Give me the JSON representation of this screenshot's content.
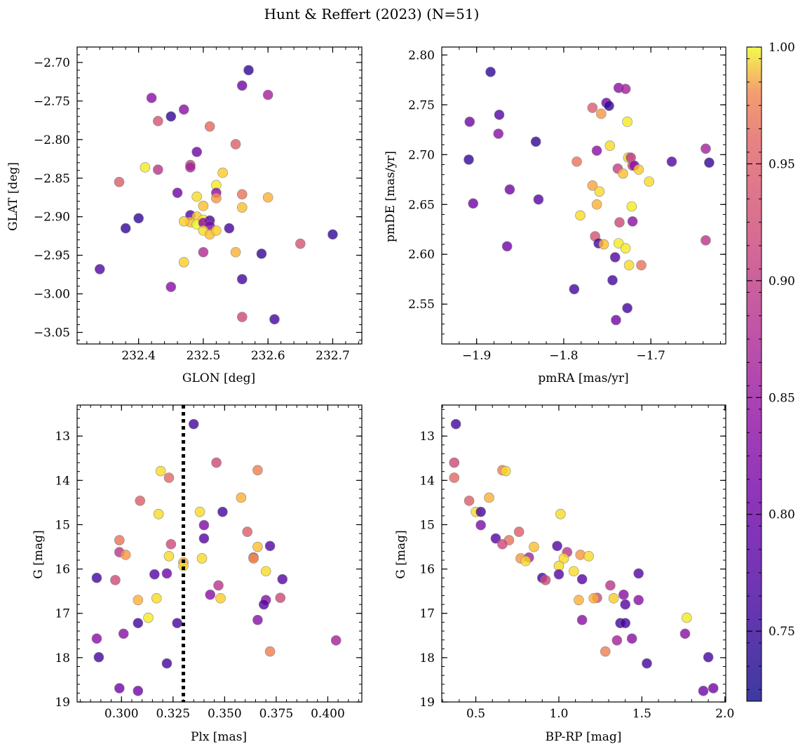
{
  "figure": {
    "title": "Hunt & Reffert (2023) (N=51)"
  },
  "colormap": {
    "name": "plasma",
    "range": [
      0.72,
      1.0
    ],
    "ticks": [
      0.75,
      0.8,
      0.85,
      0.9,
      0.95,
      1.0
    ],
    "tick_labels": [
      "0.75",
      "0.80",
      "0.85",
      "0.90",
      "0.95",
      "1.00"
    ]
  },
  "colors": {
    "frame": "#000000",
    "marker_edge": "#888888",
    "threshold_line": "#000000"
  },
  "chart_data": [
    {
      "id": "spatial",
      "type": "scatter",
      "xlabel": "GLON [deg]",
      "ylabel": "GLAT [deg]",
      "xlim": [
        232.305,
        232.745
      ],
      "ylim": [
        -3.065,
        -2.68
      ],
      "y_inverted": false,
      "xticks": [
        232.4,
        232.5,
        232.6,
        232.7
      ],
      "xtick_labels": [
        "232.4",
        "232.5",
        "232.6",
        "232.7"
      ],
      "yticks": [
        -3.05,
        -3.0,
        -2.95,
        -2.9,
        -2.85,
        -2.8,
        -2.75,
        -2.7
      ],
      "ytick_labels": [
        "−3.05",
        "−3.00",
        "−2.95",
        "−2.90",
        "−2.85",
        "−2.80",
        "−2.75",
        "−2.70"
      ],
      "points": [
        [
          232.57,
          -2.71,
          0.74
        ],
        [
          232.56,
          -2.73,
          0.78
        ],
        [
          232.6,
          -2.742,
          0.82
        ],
        [
          232.42,
          -2.746,
          0.8
        ],
        [
          232.45,
          -2.77,
          0.74
        ],
        [
          232.47,
          -2.761,
          0.8
        ],
        [
          232.43,
          -2.776,
          0.87
        ],
        [
          232.51,
          -2.783,
          0.89
        ],
        [
          232.55,
          -2.806,
          0.88
        ],
        [
          232.49,
          -2.816,
          0.78
        ],
        [
          232.41,
          -2.836,
          0.99
        ],
        [
          232.43,
          -2.839,
          0.84
        ],
        [
          232.48,
          -2.833,
          0.85
        ],
        [
          232.48,
          -2.836,
          0.82
        ],
        [
          232.53,
          -2.843,
          0.97
        ],
        [
          232.37,
          -2.855,
          0.88
        ],
        [
          232.52,
          -2.859,
          0.99
        ],
        [
          232.46,
          -2.869,
          0.78
        ],
        [
          232.52,
          -2.869,
          0.8
        ],
        [
          232.49,
          -2.874,
          0.98
        ],
        [
          232.52,
          -2.876,
          0.93
        ],
        [
          232.56,
          -2.871,
          0.9
        ],
        [
          232.6,
          -2.875,
          0.95
        ],
        [
          232.56,
          -2.888,
          0.96
        ],
        [
          232.5,
          -2.886,
          0.96
        ],
        [
          232.48,
          -2.898,
          0.76
        ],
        [
          232.49,
          -2.9,
          0.97
        ],
        [
          232.5,
          -2.904,
          0.99
        ],
        [
          232.48,
          -2.907,
          0.96
        ],
        [
          232.49,
          -2.91,
          1.0
        ],
        [
          232.51,
          -2.905,
          0.75
        ],
        [
          232.5,
          -2.908,
          0.8
        ],
        [
          232.51,
          -2.912,
          0.79
        ],
        [
          232.38,
          -2.915,
          0.74
        ],
        [
          232.4,
          -2.902,
          0.74
        ],
        [
          232.5,
          -2.918,
          0.98
        ],
        [
          232.51,
          -2.923,
          0.96
        ],
        [
          232.52,
          -2.918,
          0.97
        ],
        [
          232.54,
          -2.915,
          0.75
        ],
        [
          232.47,
          -2.906,
          0.97
        ],
        [
          232.7,
          -2.923,
          0.74
        ],
        [
          232.65,
          -2.935,
          0.87
        ],
        [
          232.5,
          -2.946,
          0.83
        ],
        [
          232.55,
          -2.946,
          0.95
        ],
        [
          232.59,
          -2.948,
          0.74
        ],
        [
          232.34,
          -2.968,
          0.76
        ],
        [
          232.47,
          -2.959,
          0.97
        ],
        [
          232.56,
          -2.981,
          0.75
        ],
        [
          232.45,
          -2.991,
          0.8
        ],
        [
          232.56,
          -3.03,
          0.86
        ],
        [
          232.61,
          -3.033,
          0.75
        ]
      ]
    },
    {
      "id": "proper-motion",
      "type": "scatter",
      "xlabel": "pmRA [mas/yr]",
      "ylabel": "pmDE [mas/yr]",
      "xlim": [
        -1.94,
        -1.614
      ],
      "ylim": [
        2.51,
        2.808
      ],
      "y_inverted": false,
      "xticks": [
        -1.9,
        -1.8,
        -1.7
      ],
      "xtick_labels": [
        "−1.9",
        "−1.8",
        "−1.7"
      ],
      "yticks": [
        2.55,
        2.6,
        2.65,
        2.7,
        2.75,
        2.8
      ],
      "ytick_labels": [
        "2.55",
        "2.60",
        "2.65",
        "2.70",
        "2.75",
        "2.80"
      ],
      "points": [
        [
          -1.884,
          2.783,
          0.74
        ],
        [
          -1.737,
          2.767,
          0.8
        ],
        [
          -1.729,
          2.766,
          0.82
        ],
        [
          -1.751,
          2.752,
          0.78
        ],
        [
          -1.748,
          2.749,
          0.74
        ],
        [
          -1.767,
          2.747,
          0.88
        ],
        [
          -1.757,
          2.741,
          0.93
        ],
        [
          -1.874,
          2.74,
          0.76
        ],
        [
          -1.908,
          2.733,
          0.78
        ],
        [
          -1.727,
          2.733,
          0.99
        ],
        [
          -1.875,
          2.721,
          0.8
        ],
        [
          -1.832,
          2.713,
          0.74
        ],
        [
          -1.747,
          2.709,
          0.98
        ],
        [
          -1.637,
          2.706,
          0.82
        ],
        [
          -1.762,
          2.704,
          0.8
        ],
        [
          -1.726,
          2.697,
          0.98
        ],
        [
          -1.723,
          2.697,
          0.84
        ],
        [
          -1.909,
          2.695,
          0.74
        ],
        [
          -1.785,
          2.693,
          0.9
        ],
        [
          -1.676,
          2.693,
          0.76
        ],
        [
          -1.633,
          2.692,
          0.74
        ],
        [
          -1.721,
          2.689,
          0.86
        ],
        [
          -1.719,
          2.689,
          0.8
        ],
        [
          -1.738,
          2.686,
          0.85
        ],
        [
          -1.714,
          2.685,
          0.97
        ],
        [
          -1.732,
          2.681,
          0.96
        ],
        [
          -1.702,
          2.673,
          0.98
        ],
        [
          -1.767,
          2.669,
          0.94
        ],
        [
          -1.862,
          2.665,
          0.78
        ],
        [
          -1.759,
          2.663,
          0.98
        ],
        [
          -1.829,
          2.655,
          0.76
        ],
        [
          -1.904,
          2.651,
          0.78
        ],
        [
          -1.762,
          2.65,
          0.95
        ],
        [
          -1.722,
          2.648,
          0.99
        ],
        [
          -1.781,
          2.639,
          0.98
        ],
        [
          -1.736,
          2.632,
          0.86
        ],
        [
          -1.721,
          2.633,
          0.8
        ],
        [
          -1.764,
          2.618,
          0.87
        ],
        [
          -1.76,
          2.611,
          0.75
        ],
        [
          -1.754,
          2.61,
          0.96
        ],
        [
          -1.737,
          2.611,
          0.99
        ],
        [
          -1.729,
          2.606,
          0.99
        ],
        [
          -1.865,
          2.608,
          0.78
        ],
        [
          -1.741,
          2.597,
          0.76
        ],
        [
          -1.637,
          2.614,
          0.84
        ],
        [
          -1.725,
          2.589,
          0.98
        ],
        [
          -1.711,
          2.589,
          0.9
        ],
        [
          -1.744,
          2.574,
          0.75
        ],
        [
          -1.788,
          2.565,
          0.75
        ],
        [
          -1.727,
          2.546,
          0.75
        ],
        [
          -1.74,
          2.534,
          0.78
        ]
      ]
    },
    {
      "id": "parallax-mag",
      "type": "scatter",
      "xlabel": "Plx [mas]",
      "ylabel": "G [mag]",
      "xlim": [
        0.2785,
        0.4165
      ],
      "ylim": [
        12.3,
        19.0
      ],
      "y_inverted": true,
      "threshold_x": 0.33,
      "xticks": [
        0.3,
        0.325,
        0.35,
        0.375,
        0.4
      ],
      "xtick_labels": [
        "0.300",
        "0.325",
        "0.350",
        "0.375",
        "0.400"
      ],
      "yticks": [
        13,
        14,
        15,
        16,
        17,
        18,
        19
      ],
      "ytick_labels": [
        "13",
        "14",
        "15",
        "16",
        "17",
        "18",
        "19"
      ],
      "points": [
        [
          0.335,
          12.73,
          0.75
        ],
        [
          0.346,
          13.6,
          0.86
        ],
        [
          0.366,
          13.77,
          0.91
        ],
        [
          0.319,
          13.79,
          0.98
        ],
        [
          0.323,
          13.94,
          0.89
        ],
        [
          0.309,
          14.46,
          0.88
        ],
        [
          0.358,
          14.39,
          0.95
        ],
        [
          0.338,
          14.71,
          0.98
        ],
        [
          0.349,
          14.71,
          0.75
        ],
        [
          0.318,
          14.76,
          0.98
        ],
        [
          0.34,
          15.01,
          0.79
        ],
        [
          0.299,
          15.35,
          0.9
        ],
        [
          0.361,
          15.16,
          0.88
        ],
        [
          0.34,
          15.31,
          0.76
        ],
        [
          0.324,
          15.44,
          0.86
        ],
        [
          0.366,
          15.5,
          0.96
        ],
        [
          0.372,
          15.48,
          0.76
        ],
        [
          0.299,
          15.62,
          0.84
        ],
        [
          0.302,
          15.68,
          0.93
        ],
        [
          0.323,
          15.71,
          0.98
        ],
        [
          0.339,
          15.76,
          0.98
        ],
        [
          0.364,
          15.74,
          0.82
        ],
        [
          0.364,
          15.76,
          0.93
        ],
        [
          0.33,
          15.85,
          0.94
        ],
        [
          0.33,
          15.93,
          0.98
        ],
        [
          0.37,
          16.05,
          0.98
        ],
        [
          0.288,
          16.2,
          0.75
        ],
        [
          0.297,
          16.25,
          0.86
        ],
        [
          0.316,
          16.12,
          0.76
        ],
        [
          0.322,
          16.1,
          0.78
        ],
        [
          0.378,
          16.23,
          0.76
        ],
        [
          0.347,
          16.37,
          0.84
        ],
        [
          0.343,
          16.58,
          0.8
        ],
        [
          0.308,
          16.7,
          0.95
        ],
        [
          0.317,
          16.66,
          0.98
        ],
        [
          0.348,
          16.66,
          0.97
        ],
        [
          0.37,
          16.7,
          0.8
        ],
        [
          0.377,
          16.65,
          0.86
        ],
        [
          0.369,
          16.8,
          0.76
        ],
        [
          0.313,
          17.1,
          0.99
        ],
        [
          0.308,
          17.22,
          0.75
        ],
        [
          0.327,
          17.22,
          0.75
        ],
        [
          0.366,
          17.15,
          0.8
        ],
        [
          0.301,
          17.46,
          0.8
        ],
        [
          0.288,
          17.57,
          0.8
        ],
        [
          0.404,
          17.61,
          0.82
        ],
        [
          0.372,
          17.86,
          0.91
        ],
        [
          0.289,
          17.99,
          0.75
        ],
        [
          0.322,
          18.13,
          0.75
        ],
        [
          0.299,
          18.69,
          0.78
        ],
        [
          0.308,
          18.75,
          0.78
        ]
      ]
    },
    {
      "id": "cmd",
      "type": "scatter",
      "xlabel": "BP-RP [mag]",
      "ylabel": "G [mag]",
      "xlim": [
        0.295,
        2.005
      ],
      "ylim": [
        12.3,
        19.0
      ],
      "y_inverted": true,
      "xticks": [
        0.5,
        1.0,
        1.5,
        2.0
      ],
      "xtick_labels": [
        "0.5",
        "1.0",
        "1.5",
        "2.0"
      ],
      "yticks": [
        13,
        14,
        15,
        16,
        17,
        18,
        19
      ],
      "ytick_labels": [
        "13",
        "14",
        "15",
        "16",
        "17",
        "18",
        "19"
      ],
      "points": [
        [
          0.38,
          12.73,
          0.75
        ],
        [
          0.37,
          13.6,
          0.86
        ],
        [
          0.66,
          13.77,
          0.91
        ],
        [
          0.68,
          13.79,
          0.98
        ],
        [
          0.37,
          13.94,
          0.89
        ],
        [
          0.46,
          14.46,
          0.88
        ],
        [
          0.58,
          14.39,
          0.95
        ],
        [
          0.5,
          14.71,
          0.98
        ],
        [
          0.53,
          14.71,
          0.75
        ],
        [
          1.01,
          14.76,
          0.98
        ],
        [
          0.53,
          15.01,
          0.79
        ],
        [
          0.76,
          15.16,
          0.88
        ],
        [
          0.62,
          15.31,
          0.76
        ],
        [
          0.7,
          15.35,
          0.9
        ],
        [
          0.66,
          15.44,
          0.86
        ],
        [
          0.85,
          15.5,
          0.96
        ],
        [
          0.99,
          15.48,
          0.76
        ],
        [
          1.05,
          15.62,
          0.84
        ],
        [
          1.13,
          15.68,
          0.93
        ],
        [
          1.18,
          15.71,
          0.98
        ],
        [
          1.03,
          15.76,
          0.98
        ],
        [
          0.77,
          15.76,
          0.93
        ],
        [
          0.82,
          15.74,
          0.82
        ],
        [
          0.8,
          15.82,
          0.98
        ],
        [
          1.0,
          15.93,
          0.98
        ],
        [
          1.09,
          16.05,
          0.98
        ],
        [
          1.48,
          16.1,
          0.76
        ],
        [
          0.9,
          16.2,
          0.75
        ],
        [
          0.92,
          16.25,
          0.86
        ],
        [
          1.0,
          16.12,
          0.76
        ],
        [
          1.14,
          16.23,
          0.76
        ],
        [
          1.31,
          16.37,
          0.84
        ],
        [
          1.39,
          16.58,
          0.8
        ],
        [
          1.23,
          16.65,
          0.86
        ],
        [
          1.21,
          16.66,
          0.95
        ],
        [
          1.33,
          16.66,
          0.97
        ],
        [
          1.12,
          16.7,
          0.95
        ],
        [
          1.48,
          16.7,
          0.8
        ],
        [
          1.4,
          16.8,
          0.76
        ],
        [
          1.77,
          17.1,
          0.99
        ],
        [
          1.14,
          17.15,
          0.8
        ],
        [
          1.37,
          17.22,
          0.75
        ],
        [
          1.4,
          17.22,
          0.75
        ],
        [
          1.76,
          17.46,
          0.8
        ],
        [
          1.44,
          17.57,
          0.8
        ],
        [
          1.35,
          17.61,
          0.82
        ],
        [
          1.28,
          17.86,
          0.91
        ],
        [
          1.9,
          17.99,
          0.75
        ],
        [
          1.53,
          18.13,
          0.75
        ],
        [
          1.93,
          18.69,
          0.78
        ],
        [
          1.87,
          18.75,
          0.78
        ]
      ]
    }
  ]
}
